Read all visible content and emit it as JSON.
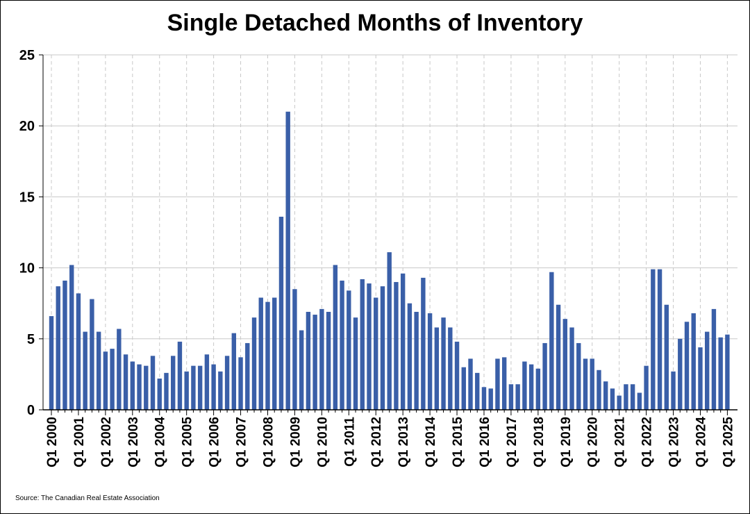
{
  "chart_data": {
    "type": "bar",
    "title": "Single Detached Months of Inventory",
    "source": "Source: The Canadian Real Estate Association",
    "xlabel": "",
    "ylabel": "",
    "ylim": [
      0,
      25
    ],
    "yticks": [
      "0",
      "5",
      "10",
      "15",
      "20",
      "25"
    ],
    "bar_color": "#3a5fa8",
    "grid": true,
    "xtick_labels": [
      "Q1 2000",
      "Q1 2001",
      "Q1 2002",
      "Q1 2003",
      "Q1 2004",
      "Q1 2005",
      "Q1 2006",
      "Q1 2007",
      "Q1 2008",
      "Q1 2009",
      "Q1 2010",
      "Q1 2011",
      "Q1 2012",
      "Q1 2013",
      "Q1 2014",
      "Q1 2015",
      "Q1 2016",
      "Q1 2017",
      "Q1 2018",
      "Q1 2019",
      "Q1 2020",
      "Q1 2021",
      "Q1 2022",
      "Q1 2023",
      "Q1 2024",
      "Q1 2025"
    ],
    "values": [
      6.6,
      8.7,
      9.1,
      10.2,
      8.2,
      5.5,
      7.8,
      5.5,
      4.1,
      4.3,
      5.7,
      3.9,
      3.4,
      3.2,
      3.1,
      3.8,
      2.2,
      2.6,
      3.8,
      4.8,
      2.7,
      3.1,
      3.1,
      3.9,
      3.2,
      2.7,
      3.8,
      5.4,
      3.7,
      4.7,
      6.5,
      7.9,
      7.6,
      7.9,
      13.6,
      21.0,
      8.5,
      5.6,
      6.9,
      6.7,
      7.1,
      6.9,
      10.2,
      9.1,
      8.4,
      6.5,
      9.2,
      8.9,
      7.9,
      8.7,
      11.1,
      9.0,
      9.6,
      7.5,
      6.9,
      9.3,
      6.8,
      5.8,
      6.5,
      5.8,
      4.8,
      3.0,
      3.6,
      2.6,
      1.6,
      1.5,
      3.6,
      3.7,
      1.8,
      1.8,
      3.4,
      3.2,
      2.9,
      4.7,
      9.7,
      7.4,
      6.4,
      5.8,
      4.7,
      3.6,
      3.6,
      2.8,
      2.0,
      1.5,
      1.0,
      1.8,
      1.8,
      1.2,
      3.1,
      9.9,
      9.9,
      7.4,
      2.7,
      5.0,
      6.2,
      6.8,
      4.4,
      5.5,
      7.1,
      5.1,
      5.3
    ]
  }
}
